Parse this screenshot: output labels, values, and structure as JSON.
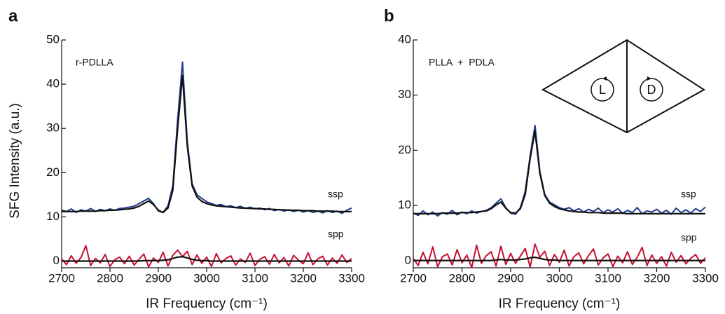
{
  "chart_data": [
    {
      "type": "line",
      "panel_label": "a",
      "sample_label": "r-PDLLA",
      "series_labels": [
        "ssp",
        "spp"
      ],
      "xlabel": "IR Frequency (cm⁻¹)",
      "ylabel": "SFG Intensity (a.u.)",
      "xlim": [
        2700,
        3300
      ],
      "xticks": [
        2700,
        2800,
        2900,
        3000,
        3100,
        3200,
        3300
      ],
      "ylim": [
        -1.5,
        50
      ],
      "yticks": [
        0,
        10,
        20,
        30,
        40,
        50
      ],
      "x": [
        2700,
        2710,
        2720,
        2730,
        2740,
        2750,
        2760,
        2770,
        2780,
        2790,
        2800,
        2810,
        2820,
        2830,
        2840,
        2850,
        2860,
        2870,
        2880,
        2890,
        2900,
        2910,
        2920,
        2930,
        2940,
        2950,
        2960,
        2970,
        2980,
        2990,
        3000,
        3010,
        3020,
        3030,
        3040,
        3050,
        3060,
        3070,
        3080,
        3090,
        3100,
        3110,
        3120,
        3130,
        3140,
        3150,
        3160,
        3170,
        3180,
        3190,
        3200,
        3210,
        3220,
        3230,
        3240,
        3250,
        3260,
        3270,
        3280,
        3290,
        3300
      ],
      "series": [
        {
          "color": "#1f3a8f",
          "values": [
            11.5,
            11.2,
            11.8,
            11.0,
            11.6,
            11.3,
            11.9,
            11.2,
            11.7,
            11.4,
            11.8,
            11.5,
            11.9,
            12.0,
            12.2,
            12.4,
            13.0,
            13.6,
            14.2,
            13.0,
            11.3,
            11.0,
            12.5,
            17.0,
            32.0,
            45.0,
            27.0,
            17.5,
            15.0,
            14.2,
            13.4,
            13.0,
            12.6,
            12.8,
            12.3,
            12.5,
            12.1,
            12.4,
            11.9,
            12.2,
            11.8,
            12.0,
            11.6,
            11.9,
            11.4,
            11.7,
            11.3,
            11.6,
            11.2,
            11.5,
            11.1,
            11.4,
            11.0,
            11.3,
            10.9,
            11.4,
            11.0,
            11.3,
            10.8,
            11.5,
            12.0
          ]
        },
        {
          "color": "#c8102e",
          "values": [
            0.5,
            -0.8,
            1.2,
            -0.5,
            0.8,
            3.5,
            -1.0,
            0.6,
            -0.4,
            1.5,
            -1.2,
            0.3,
            0.9,
            -0.6,
            1.1,
            -0.9,
            0.4,
            1.6,
            -1.3,
            0.7,
            -0.3,
            2.0,
            -1.1,
            1.3,
            2.5,
            1.0,
            2.2,
            -0.8,
            1.4,
            -0.5,
            0.9,
            -1.2,
            1.7,
            -0.4,
            0.6,
            1.2,
            -0.9,
            0.5,
            -0.3,
            1.8,
            -1.0,
            0.4,
            1.0,
            -0.7,
            1.5,
            -0.4,
            0.8,
            -1.1,
            1.3,
            0.2,
            -0.6,
            1.9,
            -0.8,
            0.5,
            1.1,
            -0.9,
            0.7,
            -0.5,
            1.4,
            -0.3,
            0.6
          ]
        },
        {
          "color": "#111111",
          "values": [
            11.2,
            11.2,
            11.2,
            11.2,
            11.3,
            11.3,
            11.3,
            11.3,
            11.4,
            11.4,
            11.5,
            11.5,
            11.6,
            11.7,
            11.8,
            12.0,
            12.4,
            13.0,
            13.6,
            12.8,
            11.5,
            11.0,
            12.0,
            16.0,
            30.0,
            42.0,
            26.0,
            17.0,
            14.5,
            13.5,
            13.0,
            12.7,
            12.5,
            12.4,
            12.3,
            12.2,
            12.1,
            12.0,
            12.0,
            11.9,
            11.9,
            11.8,
            11.8,
            11.7,
            11.7,
            11.6,
            11.6,
            11.5,
            11.5,
            11.5,
            11.4,
            11.4,
            11.4,
            11.3,
            11.3,
            11.3,
            11.3,
            11.2,
            11.2,
            11.2,
            11.2
          ]
        },
        {
          "color": "#111111",
          "values": [
            0,
            0,
            0,
            0,
            0,
            0,
            0,
            0,
            0,
            0,
            0,
            0,
            0,
            0,
            0,
            0,
            0,
            0.1,
            0.1,
            0.1,
            0.1,
            0.2,
            0.3,
            0.6,
            0.9,
            1.0,
            0.7,
            0.4,
            0.2,
            0.1,
            0.1,
            0,
            0,
            0,
            0,
            0,
            0,
            0,
            0,
            0,
            0,
            0,
            0,
            0,
            0,
            0,
            0,
            0,
            0,
            0,
            0,
            0,
            0,
            0,
            0,
            0,
            0,
            0,
            0,
            0,
            0
          ]
        }
      ]
    },
    {
      "type": "line",
      "panel_label": "b",
      "sample_label": "PLLA  +  PDLA",
      "series_labels": [
        "ssp",
        "spp"
      ],
      "xlabel": "IR Frequency (cm⁻¹)",
      "inset_labels": [
        "L",
        "D"
      ],
      "xlim": [
        2700,
        3300
      ],
      "xticks": [
        2700,
        2800,
        2900,
        3000,
        3100,
        3200,
        3300
      ],
      "ylim": [
        -1.3,
        40
      ],
      "yticks": [
        0,
        10,
        20,
        30,
        40
      ],
      "x": [
        2700,
        2710,
        2720,
        2730,
        2740,
        2750,
        2760,
        2770,
        2780,
        2790,
        2800,
        2810,
        2820,
        2830,
        2840,
        2850,
        2860,
        2870,
        2880,
        2890,
        2900,
        2910,
        2920,
        2930,
        2940,
        2950,
        2960,
        2970,
        2980,
        2990,
        3000,
        3010,
        3020,
        3030,
        3040,
        3050,
        3060,
        3070,
        3080,
        3090,
        3100,
        3110,
        3120,
        3130,
        3140,
        3150,
        3160,
        3170,
        3180,
        3190,
        3200,
        3210,
        3220,
        3230,
        3240,
        3250,
        3260,
        3270,
        3280,
        3290,
        3300
      ],
      "series": [
        {
          "color": "#1f3a8f",
          "values": [
            8.6,
            8.2,
            9.0,
            8.3,
            8.8,
            8.1,
            8.7,
            8.4,
            9.1,
            8.3,
            8.8,
            8.5,
            9.0,
            8.6,
            8.9,
            9.1,
            9.6,
            10.4,
            11.2,
            9.6,
            8.6,
            8.4,
            9.6,
            12.6,
            19.0,
            24.5,
            16.2,
            12.0,
            10.6,
            10.1,
            9.6,
            9.3,
            9.6,
            9.0,
            9.4,
            8.8,
            9.3,
            8.9,
            9.5,
            8.7,
            9.2,
            8.8,
            9.4,
            8.6,
            9.1,
            8.7,
            9.6,
            8.5,
            9.0,
            8.8,
            9.3,
            8.6,
            9.1,
            8.4,
            9.5,
            8.7,
            9.2,
            8.6,
            9.4,
            8.9,
            9.7
          ]
        },
        {
          "color": "#c8102e",
          "values": [
            0.4,
            -0.9,
            1.5,
            -0.6,
            2.5,
            -1.1,
            0.7,
            1.2,
            -0.8,
            2.0,
            -0.4,
            1.0,
            -1.3,
            2.8,
            -0.5,
            0.9,
            1.6,
            -1.0,
            2.6,
            -0.7,
            1.3,
            -0.5,
            0.8,
            2.2,
            -1.2,
            3.0,
            0.6,
            1.7,
            -0.9,
            1.1,
            -0.3,
            1.9,
            -1.0,
            0.7,
            1.4,
            -0.6,
            0.9,
            2.1,
            -0.8,
            0.5,
            1.2,
            -1.1,
            0.8,
            -0.4,
            1.6,
            -0.7,
            0.6,
            2.4,
            -0.9,
            1.0,
            -0.5,
            0.7,
            -1.0,
            1.5,
            -0.3,
            0.9,
            -0.6,
            0.4,
            1.1,
            -0.5,
            0.5
          ]
        },
        {
          "color": "#111111",
          "values": [
            8.5,
            8.5,
            8.5,
            8.5,
            8.5,
            8.5,
            8.6,
            8.6,
            8.6,
            8.6,
            8.7,
            8.7,
            8.7,
            8.8,
            8.9,
            9.0,
            9.4,
            10.1,
            10.6,
            9.5,
            8.7,
            8.6,
            9.4,
            12.0,
            18.5,
            23.5,
            15.8,
            11.8,
            10.4,
            9.8,
            9.4,
            9.2,
            9.0,
            8.9,
            8.8,
            8.8,
            8.7,
            8.7,
            8.7,
            8.6,
            8.6,
            8.6,
            8.6,
            8.6,
            8.5,
            8.5,
            8.5,
            8.5,
            8.5,
            8.5,
            8.5,
            8.5,
            8.5,
            8.5,
            8.5,
            8.5,
            8.5,
            8.5,
            8.5,
            8.5,
            8.5
          ]
        },
        {
          "color": "#111111",
          "values": [
            0,
            0,
            0,
            0,
            0,
            0,
            0,
            0,
            0,
            0,
            0,
            0,
            0,
            0,
            0,
            0,
            0,
            0.1,
            0.2,
            0.1,
            0.1,
            0.1,
            0.2,
            0.3,
            0.5,
            0.6,
            0.4,
            0.2,
            0.1,
            0.1,
            0,
            0,
            0,
            0,
            0,
            0,
            0,
            0,
            0,
            0,
            0,
            0,
            0,
            0,
            0,
            0,
            0,
            0,
            0,
            0,
            0,
            0,
            0,
            0,
            0,
            0,
            0,
            0,
            0,
            0,
            0
          ]
        }
      ]
    }
  ]
}
